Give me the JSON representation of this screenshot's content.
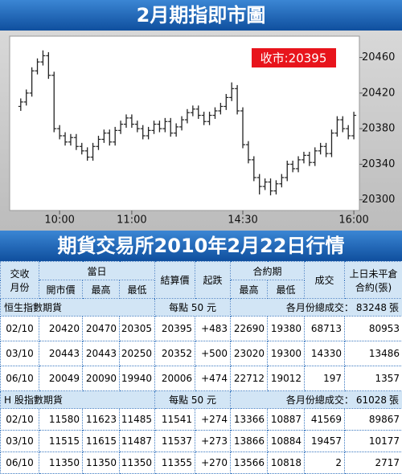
{
  "chart_data": {
    "type": "ohlc",
    "title": "2月期指即市圖",
    "annotation": "收市:20395",
    "open": [
      20405,
      20410,
      20420,
      20445,
      20455,
      20462,
      20440,
      20380,
      20372,
      20365,
      20370,
      20360,
      20355,
      20348,
      20360,
      20368,
      20375,
      20365,
      20378,
      20385,
      20392,
      20385,
      20380,
      20372,
      20378,
      20385,
      20380,
      20388,
      20375,
      20382,
      20390,
      20398,
      20402,
      20395,
      20388,
      20395,
      20400,
      20405,
      20415,
      20425,
      20400,
      20362,
      20345,
      20325,
      20315,
      20320,
      20310,
      20318,
      20325,
      20340,
      20335,
      20345,
      20350,
      20342,
      20355,
      20360,
      20352,
      20375,
      20390,
      20380,
      20372
    ],
    "high": [
      20414,
      20424,
      20449,
      20459,
      20468,
      20466,
      20444,
      20384,
      20376,
      20374,
      20374,
      20364,
      20359,
      20364,
      20372,
      20379,
      20379,
      20382,
      20389,
      20396,
      20396,
      20389,
      20384,
      20382,
      20389,
      20389,
      20392,
      20392,
      20386,
      20394,
      20402,
      20406,
      20406,
      20399,
      20399,
      20404,
      20409,
      20419,
      20432,
      20429,
      20404,
      20366,
      20349,
      20329,
      20324,
      20324,
      20322,
      20329,
      20344,
      20344,
      20349,
      20354,
      20354,
      20359,
      20364,
      20364,
      20379,
      20394,
      20394,
      20384,
      20399
    ],
    "low": [
      20400,
      20406,
      20416,
      20441,
      20451,
      20436,
      20376,
      20368,
      20361,
      20361,
      20356,
      20351,
      20344,
      20344,
      20356,
      20364,
      20361,
      20361,
      20374,
      20381,
      20381,
      20376,
      20368,
      20368,
      20374,
      20376,
      20376,
      20371,
      20371,
      20378,
      20386,
      20394,
      20391,
      20384,
      20384,
      20391,
      20396,
      20401,
      20411,
      20396,
      20358,
      20341,
      20321,
      20306,
      20311,
      20305,
      20306,
      20314,
      20321,
      20331,
      20331,
      20341,
      20338,
      20338,
      20351,
      20348,
      20348,
      20371,
      20376,
      20368,
      20368
    ],
    "close": [
      20410,
      20420,
      20445,
      20455,
      20462,
      20440,
      20380,
      20372,
      20365,
      20370,
      20360,
      20355,
      20348,
      20360,
      20368,
      20375,
      20365,
      20378,
      20385,
      20392,
      20385,
      20380,
      20372,
      20378,
      20385,
      20380,
      20388,
      20375,
      20382,
      20390,
      20398,
      20402,
      20395,
      20388,
      20395,
      20400,
      20405,
      20415,
      20425,
      20400,
      20362,
      20345,
      20325,
      20315,
      20320,
      20310,
      20318,
      20325,
      20340,
      20335,
      20345,
      20350,
      20342,
      20355,
      20360,
      20352,
      20375,
      20390,
      20380,
      20372,
      20395
    ],
    "color": "#222222",
    "ylim": [
      20288,
      20484
    ],
    "yticks": [
      20300,
      20340,
      20380,
      20420,
      20460
    ],
    "xlim": [
      -2,
      61
    ],
    "xticks": [
      {
        "value": 7,
        "label": "10:00"
      },
      {
        "value": 20,
        "label": "11:00"
      },
      {
        "value": 40,
        "label": "14:30"
      },
      {
        "value": 60,
        "label": "16:00"
      }
    ],
    "grid": false
  },
  "table": {
    "title": "期貨交易所2010年2月22日行情",
    "columns": {
      "month": [
        "交收",
        "月份"
      ],
      "day": "當日",
      "open": "開市價",
      "day_high": "最高",
      "day_low": "最低",
      "settle": "結算價",
      "change": "起跌",
      "contract": "合約期",
      "contract_high": "最高",
      "contract_low": "最低",
      "volume": "成交",
      "oi": [
        "上日未平倉",
        "合約(張)"
      ]
    },
    "sections": [
      {
        "name": "恒生指數期貨",
        "note": "每點 50 元",
        "total_label": "各月份總成交：",
        "total": 83248,
        "total_unit": "張",
        "rows": [
          [
            "02/10",
            20420,
            20470,
            20305,
            20395,
            "+483",
            22690,
            19380,
            68713,
            80953
          ],
          [
            "03/10",
            20443,
            20443,
            20250,
            20352,
            "+500",
            23020,
            19300,
            14330,
            13486
          ],
          [
            "06/10",
            20049,
            20090,
            19940,
            20006,
            "+474",
            22712,
            19012,
            197,
            1357
          ]
        ]
      },
      {
        "name": "H 股指數期貨",
        "note": "每點 50 元",
        "total_label": "各月份總成交：",
        "total": 61028,
        "total_unit": "張",
        "rows": [
          [
            "02/10",
            11580,
            11623,
            11485,
            11541,
            "+274",
            13366,
            10887,
            41569,
            89867
          ],
          [
            "03/10",
            11515,
            11615,
            11487,
            11537,
            "+273",
            13866,
            10884,
            19457,
            10177
          ],
          [
            "06/10",
            11350,
            11350,
            11350,
            11355,
            "+270",
            13566,
            10818,
            2,
            2717
          ]
        ]
      }
    ]
  }
}
